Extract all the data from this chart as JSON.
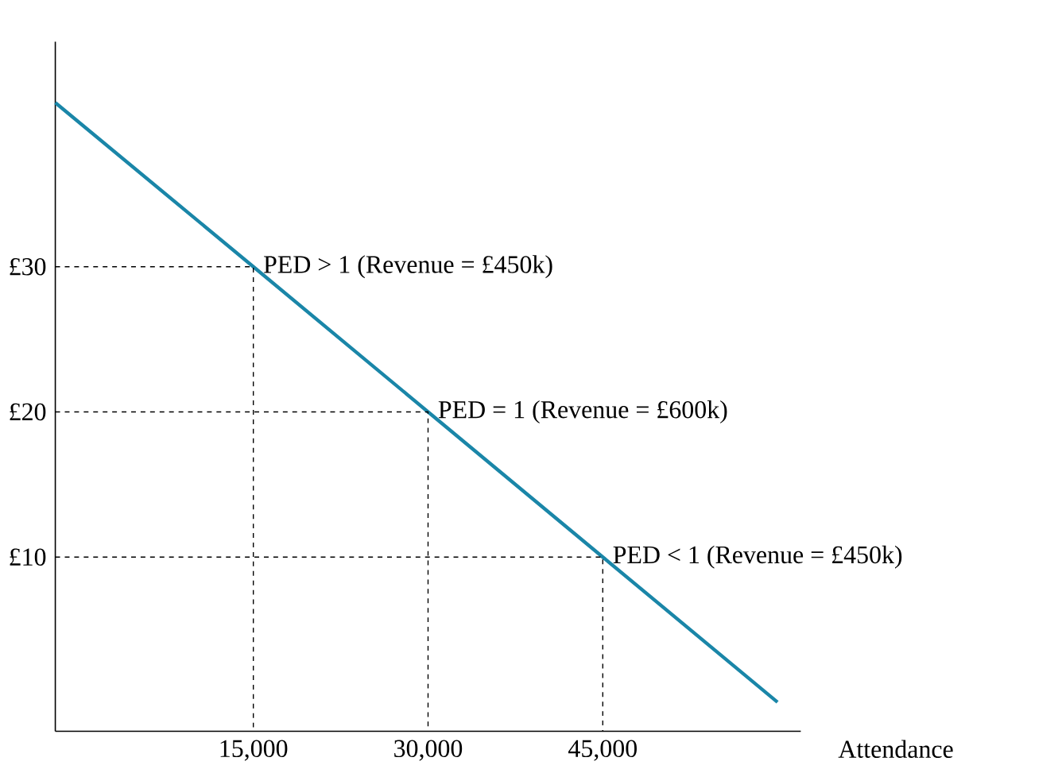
{
  "chart_data": {
    "type": "line",
    "xlabel": "Attendance",
    "x": [
      -2000,
      15000,
      30000,
      45000,
      60000
    ],
    "series": [
      {
        "color": "#1a86a8",
        "values": [
          41.3,
          30,
          20,
          10,
          0
        ]
      },
      {
        "color": "#000000",
        "line_style": "dashed",
        "x": [
          -2000,
          15000,
          15000
        ],
        "values": [
          30,
          30,
          -2
        ]
      },
      {
        "color": "#000000",
        "line_style": "dashed",
        "x": [
          -2000,
          30000,
          30000
        ],
        "values": [
          20,
          20,
          -2
        ]
      },
      {
        "color": "#000000",
        "line_style": "dashed",
        "x": [
          -2000,
          45000,
          45000
        ],
        "values": [
          10,
          10,
          -2
        ]
      }
    ],
    "xlim": [
      -2000,
      62000
    ],
    "ylim": [
      -2,
      45.5
    ],
    "xticks": [
      {
        "value": 15000,
        "label": "15,000"
      },
      {
        "value": 30000,
        "label": "30,000"
      },
      {
        "value": 45000,
        "label": "45,000"
      }
    ],
    "yticks": [
      {
        "value": 10,
        "label": "£10"
      },
      {
        "value": 20,
        "label": "£20"
      },
      {
        "value": 30,
        "label": "£30"
      }
    ],
    "marker": "none",
    "line_style": "solid",
    "annotations": [
      {
        "text": "PED > 1 (Revenue = £450k)",
        "x": 15000,
        "y": 30
      },
      {
        "text": "PED = 1 (Revenue = £600k)",
        "x": 30000,
        "y": 20
      },
      {
        "text": "PED < 1 (Revenue = £450k)",
        "x": 45000,
        "y": 10
      }
    ]
  }
}
